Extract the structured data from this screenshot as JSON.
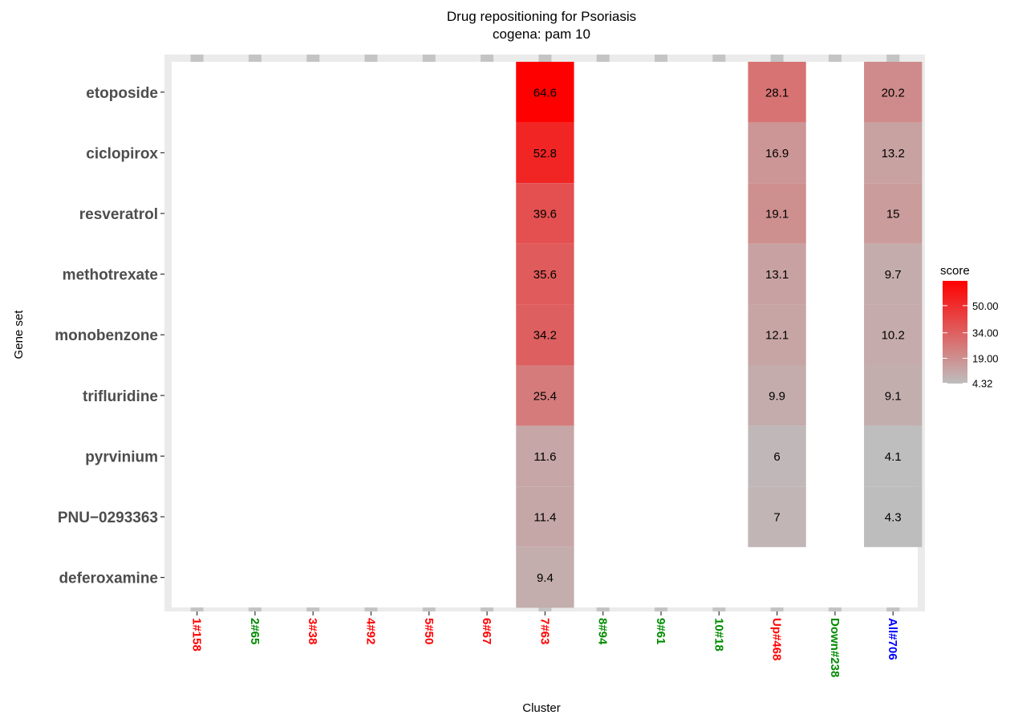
{
  "chart_data": {
    "type": "heatmap",
    "title": "Drug repositioning for Psoriasis",
    "subtitle": "cogena: pam 10",
    "xlabel": "Cluster",
    "ylabel": "Gene set",
    "x_categories": [
      {
        "label": "1#158",
        "color": "#ff0000"
      },
      {
        "label": "2#65",
        "color": "#008b00"
      },
      {
        "label": "3#38",
        "color": "#ff0000"
      },
      {
        "label": "4#92",
        "color": "#ff0000"
      },
      {
        "label": "5#50",
        "color": "#ff0000"
      },
      {
        "label": "6#67",
        "color": "#ff0000"
      },
      {
        "label": "7#63",
        "color": "#ff0000"
      },
      {
        "label": "8#94",
        "color": "#008b00"
      },
      {
        "label": "9#61",
        "color": "#008b00"
      },
      {
        "label": "10#18",
        "color": "#008b00"
      },
      {
        "label": "Up#468",
        "color": "#ff0000"
      },
      {
        "label": "Down#238",
        "color": "#008b00"
      },
      {
        "label": "All#706",
        "color": "#0000ff"
      }
    ],
    "y_categories": [
      "etoposide",
      "ciclopirox",
      "resveratrol",
      "methotrexate",
      "monobenzone",
      "trifluridine",
      "pyrvinium",
      "PNU−0293363",
      "deferoxamine"
    ],
    "cells": [
      {
        "x": "7#63",
        "y": "etoposide",
        "value": 64.6,
        "label": "64.6"
      },
      {
        "x": "7#63",
        "y": "ciclopirox",
        "value": 52.8,
        "label": "52.8"
      },
      {
        "x": "7#63",
        "y": "resveratrol",
        "value": 39.6,
        "label": "39.6"
      },
      {
        "x": "7#63",
        "y": "methotrexate",
        "value": 35.6,
        "label": "35.6"
      },
      {
        "x": "7#63",
        "y": "monobenzone",
        "value": 34.2,
        "label": "34.2"
      },
      {
        "x": "7#63",
        "y": "trifluridine",
        "value": 25.4,
        "label": "25.4"
      },
      {
        "x": "7#63",
        "y": "pyrvinium",
        "value": 11.6,
        "label": "11.6"
      },
      {
        "x": "7#63",
        "y": "PNU−0293363",
        "value": 11.4,
        "label": "11.4"
      },
      {
        "x": "7#63",
        "y": "deferoxamine",
        "value": 9.4,
        "label": "9.4"
      },
      {
        "x": "Up#468",
        "y": "etoposide",
        "value": 28.1,
        "label": "28.1"
      },
      {
        "x": "Up#468",
        "y": "ciclopirox",
        "value": 16.9,
        "label": "16.9"
      },
      {
        "x": "Up#468",
        "y": "resveratrol",
        "value": 19.1,
        "label": "19.1"
      },
      {
        "x": "Up#468",
        "y": "methotrexate",
        "value": 13.1,
        "label": "13.1"
      },
      {
        "x": "Up#468",
        "y": "monobenzone",
        "value": 12.1,
        "label": "12.1"
      },
      {
        "x": "Up#468",
        "y": "trifluridine",
        "value": 9.9,
        "label": "9.9"
      },
      {
        "x": "Up#468",
        "y": "pyrvinium",
        "value": 6,
        "label": "6"
      },
      {
        "x": "Up#468",
        "y": "PNU−0293363",
        "value": 7,
        "label": "7"
      },
      {
        "x": "All#706",
        "y": "etoposide",
        "value": 20.2,
        "label": "20.2"
      },
      {
        "x": "All#706",
        "y": "ciclopirox",
        "value": 13.2,
        "label": "13.2"
      },
      {
        "x": "All#706",
        "y": "resveratrol",
        "value": 15,
        "label": "15"
      },
      {
        "x": "All#706",
        "y": "methotrexate",
        "value": 9.7,
        "label": "9.7"
      },
      {
        "x": "All#706",
        "y": "monobenzone",
        "value": 10.2,
        "label": "10.2"
      },
      {
        "x": "All#706",
        "y": "trifluridine",
        "value": 9.1,
        "label": "9.1"
      },
      {
        "x": "All#706",
        "y": "pyrvinium",
        "value": 4.1,
        "label": "4.1"
      },
      {
        "x": "All#706",
        "y": "PNU−0293363",
        "value": 4.3,
        "label": "4.3"
      }
    ],
    "legend": {
      "title": "score",
      "placement": "right",
      "low_color": "#bebebe",
      "high_color": "#ff0000",
      "min": 4.1,
      "max": 64.6,
      "breaks": [
        4.32,
        19.0,
        34.0,
        50.0
      ],
      "break_labels": [
        "4.32",
        "19.00",
        "34.00",
        "50.00"
      ]
    },
    "panel_background": "#ebebeb",
    "tile_fill_background": "#ffffff",
    "grid": true
  }
}
